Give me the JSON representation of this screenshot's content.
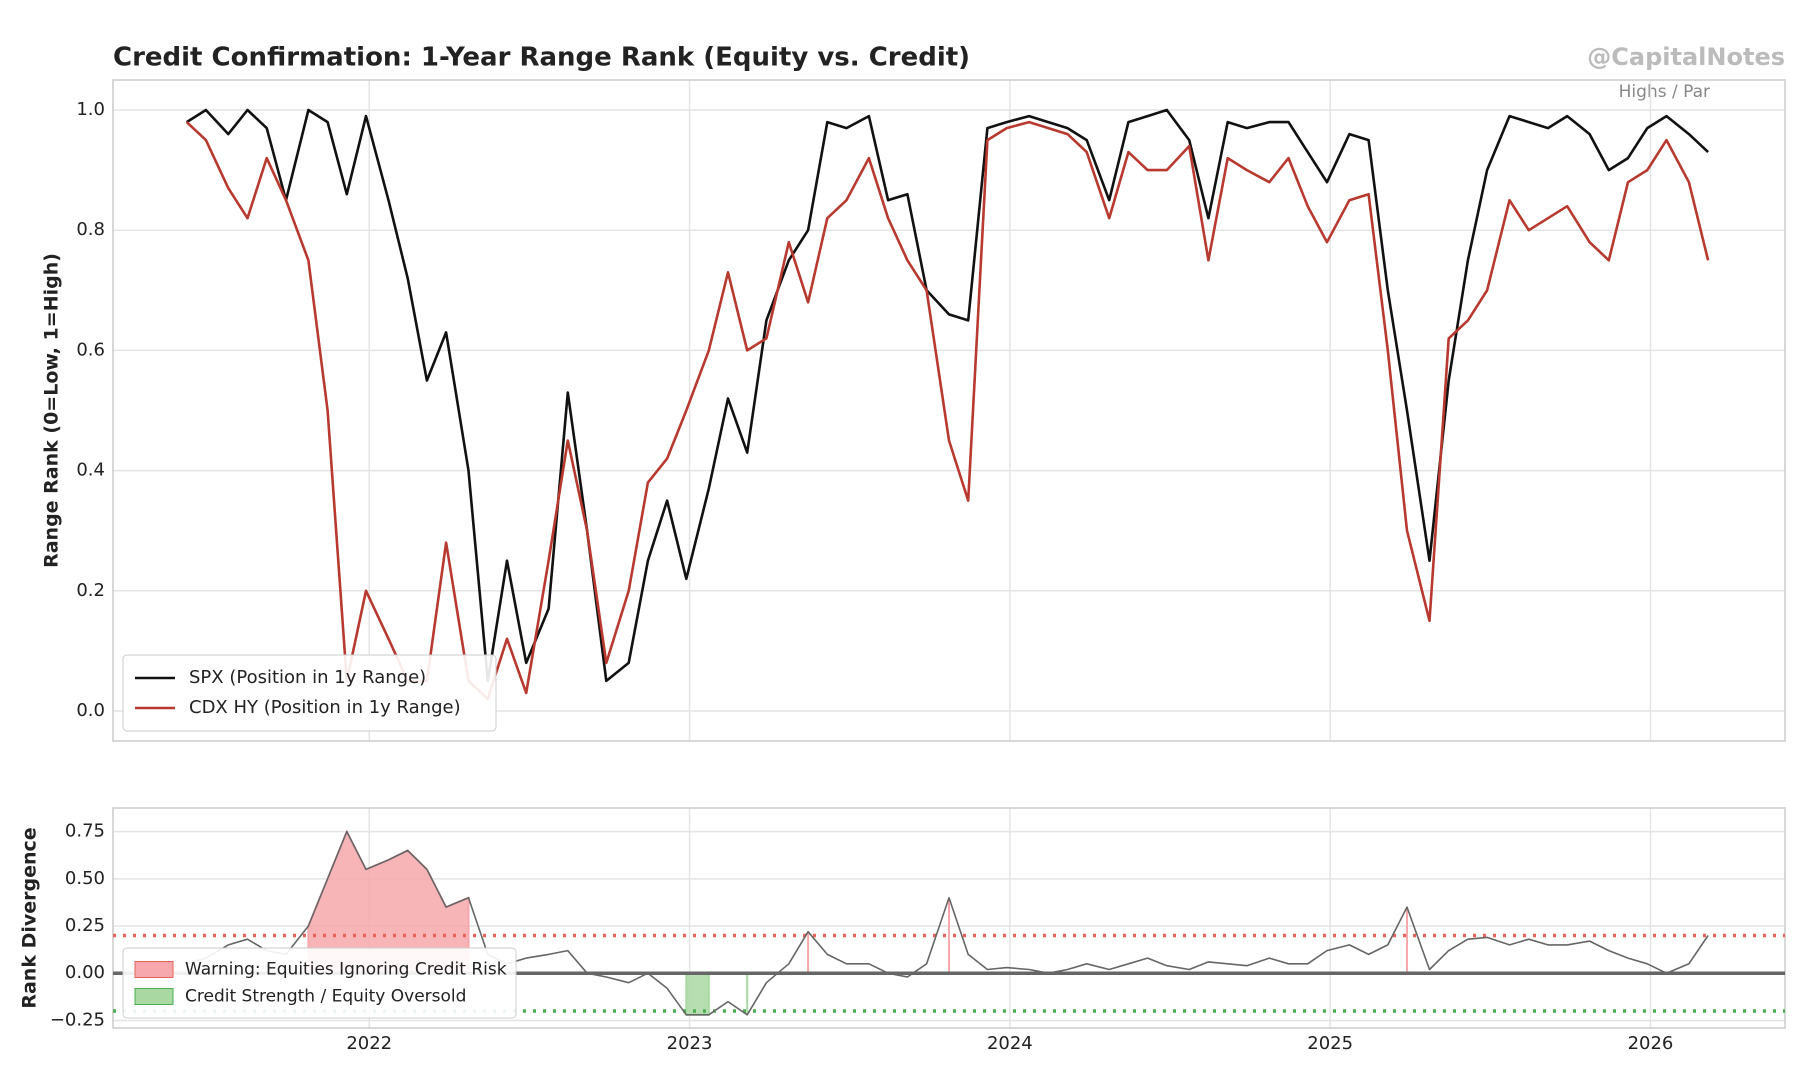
{
  "chart_data": [
    {
      "type": "line",
      "title": "Credit Confirmation: 1-Year Range Rank (Equity vs. Credit)",
      "watermark": "@CapitalNotes",
      "annotation": "Highs / Par",
      "y_label": "Range Rank (0=Low, 1=High)",
      "x": [
        2021.43,
        2021.49,
        2021.56,
        2021.62,
        2021.68,
        2021.74,
        2021.81,
        2021.87,
        2021.93,
        2021.99,
        2022.06,
        2022.12,
        2022.18,
        2022.24,
        2022.31,
        2022.37,
        2022.43,
        2022.49,
        2022.56,
        2022.62,
        2022.68,
        2022.74,
        2022.81,
        2022.87,
        2022.93,
        2022.99,
        2023.06,
        2023.12,
        2023.18,
        2023.24,
        2023.31,
        2023.37,
        2023.43,
        2023.49,
        2023.56,
        2023.62,
        2023.68,
        2023.74,
        2023.81,
        2023.87,
        2023.93,
        2023.99,
        2024.06,
        2024.12,
        2024.18,
        2024.24,
        2024.31,
        2024.37,
        2024.43,
        2024.49,
        2024.56,
        2024.62,
        2024.68,
        2024.74,
        2024.81,
        2024.87,
        2024.93,
        2024.99,
        2025.06,
        2025.12,
        2025.18,
        2025.24,
        2025.31,
        2025.37,
        2025.43,
        2025.49,
        2025.56,
        2025.62,
        2025.68,
        2025.74,
        2025.81,
        2025.87,
        2025.93,
        2025.99,
        2026.05,
        2026.12,
        2026.18
      ],
      "series": [
        {
          "name": "SPX (Position in 1y Range)",
          "color": "#111111",
          "values": [
            0.98,
            1.0,
            0.96,
            1.0,
            0.97,
            0.85,
            1.0,
            0.98,
            0.86,
            0.99,
            0.85,
            0.72,
            0.55,
            0.63,
            0.4,
            0.05,
            0.25,
            0.08,
            0.17,
            0.53,
            0.3,
            0.05,
            0.08,
            0.25,
            0.35,
            0.22,
            0.37,
            0.52,
            0.43,
            0.65,
            0.75,
            0.8,
            0.98,
            0.97,
            0.99,
            0.85,
            0.86,
            0.7,
            0.66,
            0.65,
            0.97,
            0.98,
            0.99,
            0.98,
            0.97,
            0.95,
            0.85,
            0.98,
            0.99,
            1.0,
            0.95,
            0.82,
            0.98,
            0.97,
            0.98,
            0.98,
            0.93,
            0.88,
            0.96,
            0.95,
            0.7,
            0.5,
            0.25,
            0.55,
            0.75,
            0.9,
            0.99,
            0.98,
            0.97,
            0.99,
            0.96,
            0.9,
            0.92,
            0.97,
            0.99,
            0.96,
            0.93
          ]
        },
        {
          "name": "CDX HY (Position in 1y Range)",
          "color": "#b8392f",
          "values": [
            0.98,
            0.95,
            0.87,
            0.82,
            0.92,
            0.85,
            0.75,
            0.5,
            0.05,
            0.2,
            0.12,
            0.05,
            0.05,
            0.28,
            0.05,
            0.02,
            0.12,
            0.03,
            0.25,
            0.45,
            0.3,
            0.08,
            0.2,
            0.38,
            0.42,
            0.5,
            0.6,
            0.73,
            0.6,
            0.62,
            0.78,
            0.68,
            0.82,
            0.85,
            0.92,
            0.82,
            0.75,
            0.7,
            0.45,
            0.35,
            0.95,
            0.97,
            0.98,
            0.97,
            0.96,
            0.93,
            0.82,
            0.93,
            0.9,
            0.9,
            0.94,
            0.75,
            0.92,
            0.9,
            0.88,
            0.92,
            0.84,
            0.78,
            0.85,
            0.86,
            0.6,
            0.3,
            0.15,
            0.62,
            0.65,
            0.7,
            0.85,
            0.8,
            0.82,
            0.84,
            0.78,
            0.75,
            0.88,
            0.9,
            0.95,
            0.88,
            0.75
          ]
        }
      ],
      "xlim": [
        2021.2,
        2026.42
      ],
      "ylim": [
        -0.05,
        1.05
      ],
      "yticks": [
        {
          "value": 0,
          "label": "0.0"
        },
        0.2,
        0.4,
        0.6,
        0.8,
        {
          "value": 1,
          "label": "1.0"
        }
      ],
      "grid": true,
      "legend": "lower left"
    },
    {
      "type": "area",
      "y_label": "Rank Divergence",
      "color": "#666666",
      "values": [
        0.05,
        0.08,
        0.15,
        0.18,
        0.12,
        0.1,
        0.25,
        0.5,
        0.75,
        0.55,
        0.6,
        0.65,
        0.55,
        0.35,
        0.4,
        0.1,
        0.05,
        0.08,
        0.1,
        0.12,
        0.0,
        -0.02,
        -0.05,
        0.0,
        -0.08,
        -0.22,
        -0.22,
        -0.15,
        -0.22,
        -0.05,
        0.05,
        0.22,
        0.1,
        0.05,
        0.05,
        0.0,
        -0.02,
        0.05,
        0.4,
        0.1,
        0.02,
        0.03,
        0.02,
        0.0,
        0.02,
        0.05,
        0.02,
        0.05,
        0.08,
        0.04,
        0.02,
        0.06,
        0.05,
        0.04,
        0.08,
        0.05,
        0.05,
        0.12,
        0.15,
        0.1,
        0.15,
        0.35,
        0.02,
        0.12,
        0.18,
        0.19,
        0.15,
        0.18,
        0.15,
        0.15,
        0.17,
        0.12,
        0.08,
        0.05,
        0.0,
        0.05,
        0.2
      ],
      "bands": [
        {
          "name": "Warning: Equities Ignoring Credit Risk",
          "color": "#f7a8ac",
          "line_color": "#e8645a",
          "above": 0.2
        },
        {
          "name": "Credit Strength / Equity Oversold",
          "color": "#a9d8a3",
          "line_color": "#4caf50",
          "below": -0.2
        }
      ],
      "xlim": [
        2021.2,
        2026.42
      ],
      "xticks": [
        2022,
        2023,
        2024,
        2025,
        2026
      ],
      "ylim": [
        -0.29,
        0.875
      ],
      "yticks": [
        {
          "value": -0.25,
          "label": "−0.25"
        },
        {
          "value": 0,
          "label": "0.00"
        },
        0.25,
        {
          "value": 0.5,
          "label": "0.50"
        },
        0.75
      ],
      "grid": true,
      "legend": "lower left"
    }
  ]
}
